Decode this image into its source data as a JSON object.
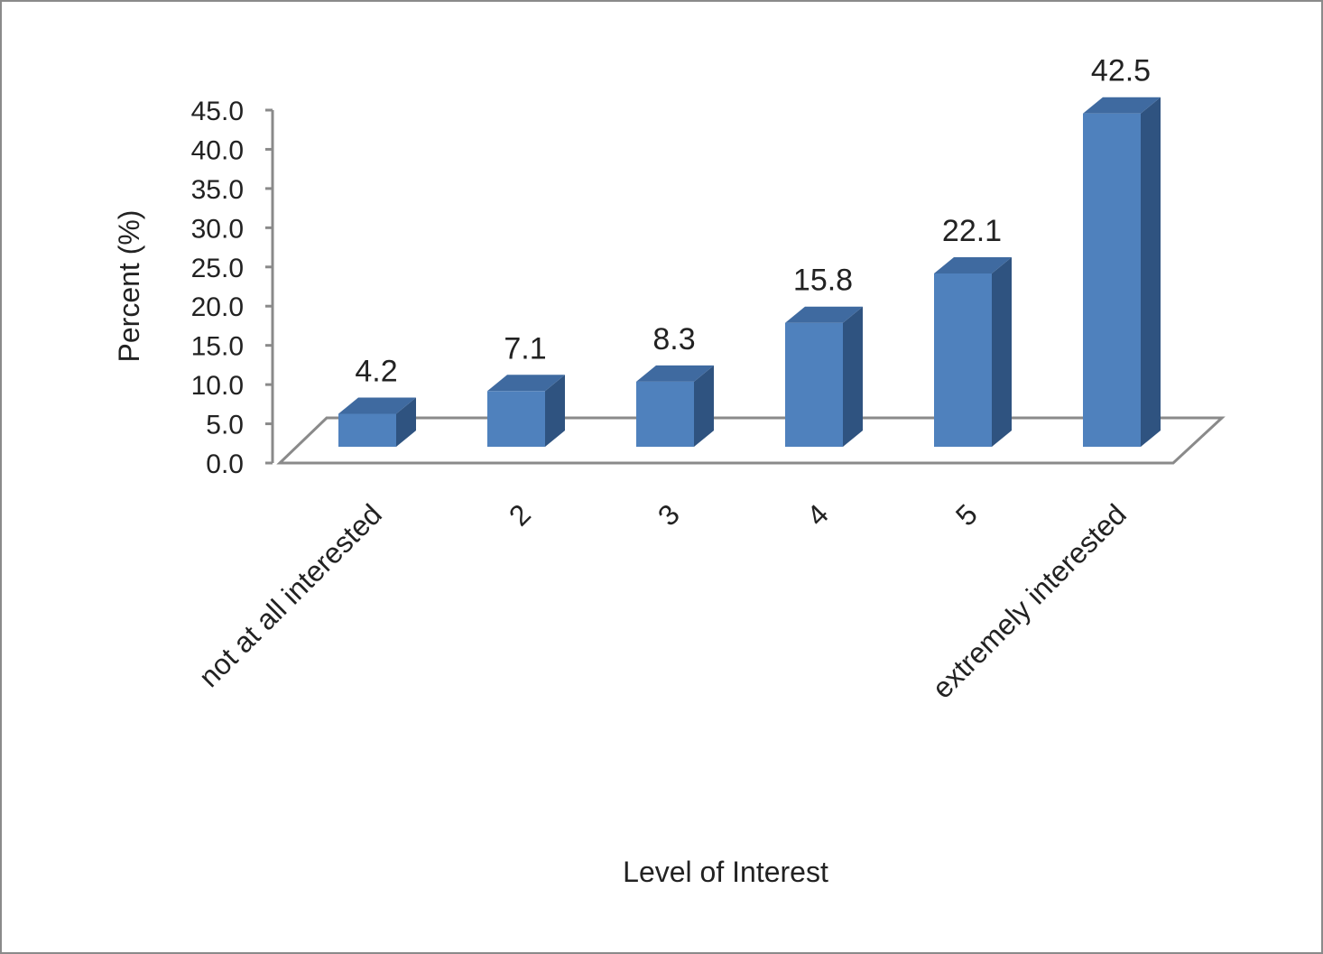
{
  "chart_data": {
    "type": "bar",
    "style": "3d-column",
    "categories": [
      "not at all interested",
      "2",
      "3",
      "4",
      "5",
      "extremely interested"
    ],
    "values": [
      4.2,
      7.1,
      8.3,
      15.8,
      22.1,
      42.5
    ],
    "value_labels": [
      "4.2",
      "7.1",
      "8.3",
      "15.8",
      "22.1",
      "42.5"
    ],
    "xlabel": "Level of Interest",
    "ylabel": "Percent (%)",
    "ylim": [
      0,
      45
    ],
    "yticks": [
      "0.0",
      "5.0",
      "10.0",
      "15.0",
      "20.0",
      "25.0",
      "30.0",
      "35.0",
      "40.0",
      "45.0"
    ],
    "grid": false,
    "legend": "none",
    "colors": {
      "bar_front": "#4f81bd",
      "bar_side": "#2f5380",
      "bar_top": "#3f6aa0",
      "axis": "#8a8a8a",
      "text": "#222222"
    }
  }
}
